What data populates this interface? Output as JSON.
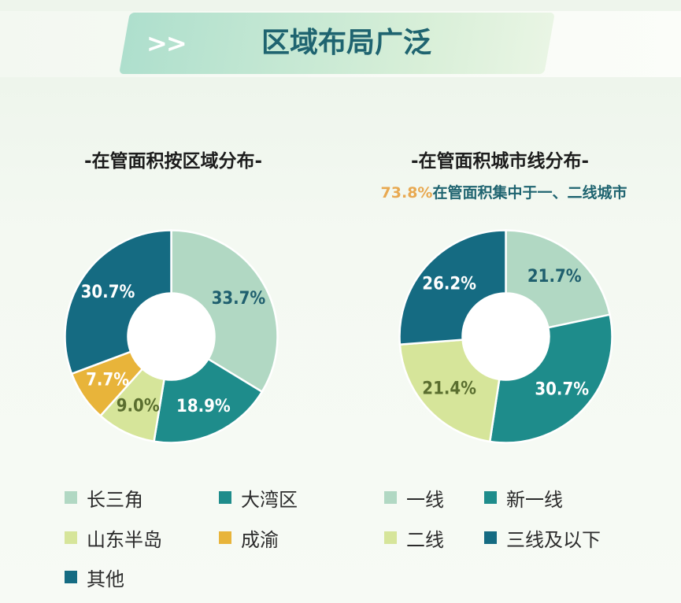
{
  "header": {
    "arrows": ">>",
    "title": "区域布局广泛"
  },
  "colors": {
    "teal_light": "#b1d8c3",
    "teal_mid": "#1e8c8b",
    "teal_dark": "#156b82",
    "lime": "#d6e59a",
    "amber": "#e8b43a",
    "highlight": "#e8a951"
  },
  "chart_data": [
    {
      "type": "pie",
      "title": "-在管面积按区域分布-",
      "donut": true,
      "categories": [
        "长三角",
        "大湾区",
        "山东半岛",
        "成渝",
        "其他"
      ],
      "values": [
        33.7,
        18.9,
        9.0,
        7.7,
        30.7
      ],
      "labels": [
        "33.7%",
        "18.9%",
        "9.0%",
        "7.7%",
        "30.7%"
      ],
      "colors": [
        "#b1d8c3",
        "#1e8c8b",
        "#d6e59a",
        "#e8b43a",
        "#156b82"
      ],
      "label_colors": [
        "#1f5f6e",
        "#ffffff",
        "#5a6e2f",
        "#ffffff",
        "#ffffff"
      ],
      "legend": "bottom"
    },
    {
      "type": "pie",
      "title": "-在管面积城市线分布-",
      "subtitle_highlight": "73.8%",
      "subtitle_rest": "在管面积集中于一、二线城市",
      "donut": true,
      "categories": [
        "一线",
        "新一线",
        "二线",
        "三线及以下"
      ],
      "values": [
        21.7,
        30.7,
        21.4,
        26.2
      ],
      "labels": [
        "21.7%",
        "30.7%",
        "21.4%",
        "26.2%"
      ],
      "colors": [
        "#b1d8c3",
        "#1e8c8b",
        "#d6e59a",
        "#156b82"
      ],
      "label_colors": [
        "#1f5f6e",
        "#ffffff",
        "#5a6e2f",
        "#ffffff"
      ],
      "legend": "bottom"
    }
  ]
}
